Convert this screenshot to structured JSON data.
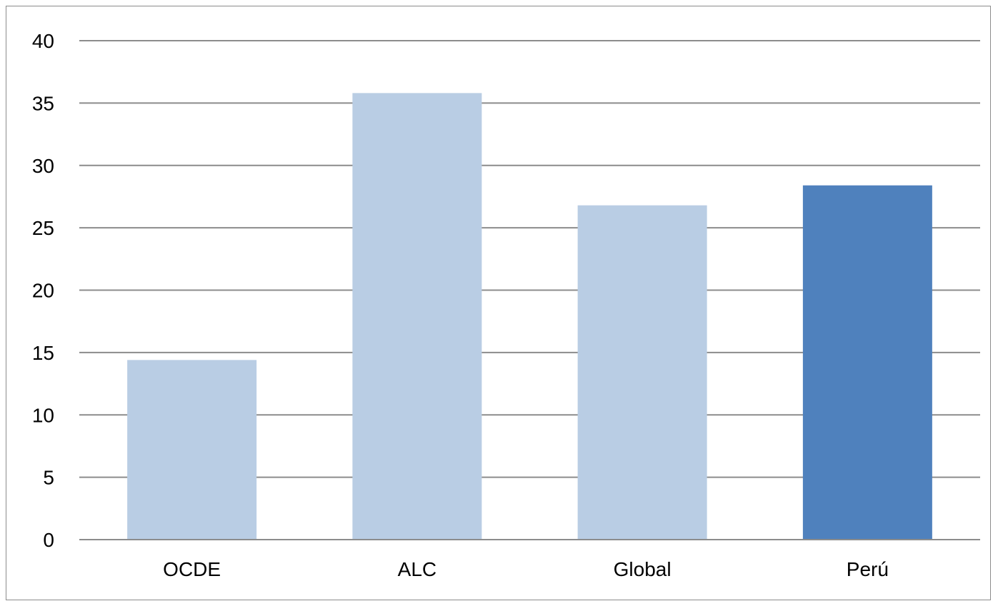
{
  "chart_data": {
    "type": "bar",
    "categories": [
      "OCDE",
      "ALC",
      "Global",
      "Perú"
    ],
    "values": [
      14.4,
      35.8,
      26.8,
      28.4
    ],
    "bar_colors": [
      "#b9cde4",
      "#b9cde4",
      "#b9cde4",
      "#4f81bd"
    ],
    "ylim": [
      0,
      40
    ],
    "yticks": [
      0,
      5,
      10,
      15,
      20,
      25,
      30,
      35,
      40
    ],
    "title": "",
    "xlabel": "",
    "ylabel": "",
    "grid": true,
    "legend": false
  },
  "colors": {
    "bar_default": "#b9cde4",
    "bar_highlight": "#4f81bd",
    "gridline": "#8c8c8c",
    "frame": "#8c8c8c"
  }
}
